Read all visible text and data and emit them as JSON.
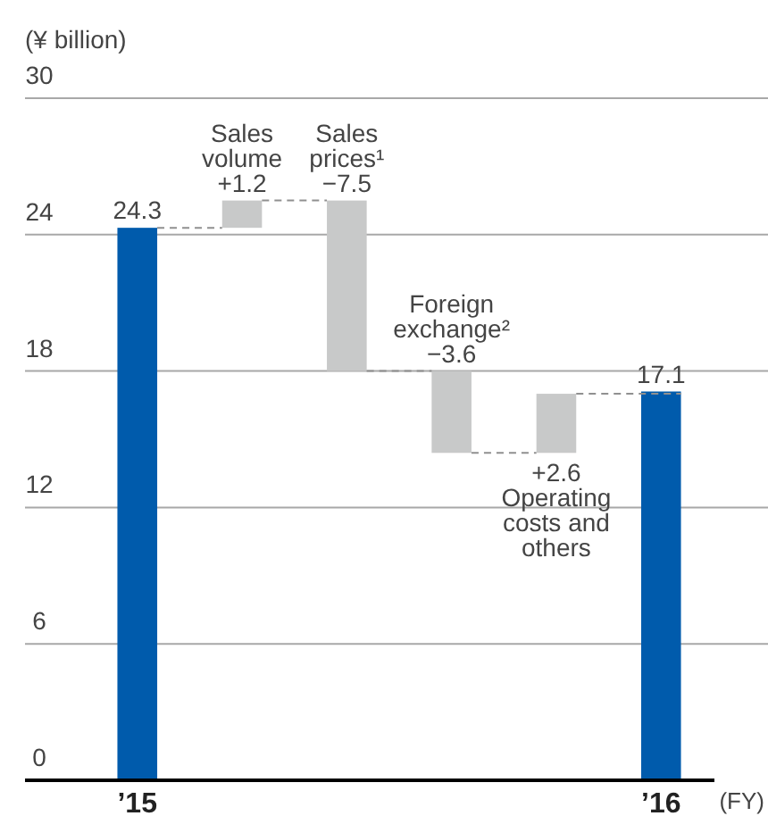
{
  "chart_data": {
    "type": "bar",
    "categories": [
      "’15",
      "Sales volume",
      "Sales prices¹",
      "Foreign exchange²",
      "Operating costs and others",
      "’16"
    ],
    "values": [
      24.3,
      1.2,
      -7.5,
      -3.6,
      2.6,
      17.1
    ],
    "base": [
      null,
      24.3,
      25.5,
      18.0,
      14.4,
      null
    ],
    "colors": [
      "#005bac",
      "#c8c9c9",
      "#c8c9c9",
      "#c8c9c9",
      "#c8c9c9",
      "#005bac"
    ],
    "value_labels": [
      "24.3",
      "+1.2",
      "−7.5",
      "−3.6",
      "+2.6",
      "17.1"
    ],
    "ylabel": "(¥ billion)",
    "xlabel": "(FY)",
    "ylim": [
      0,
      30
    ],
    "yticks": [
      0,
      6,
      12,
      18,
      24,
      30
    ],
    "grid": "y"
  }
}
